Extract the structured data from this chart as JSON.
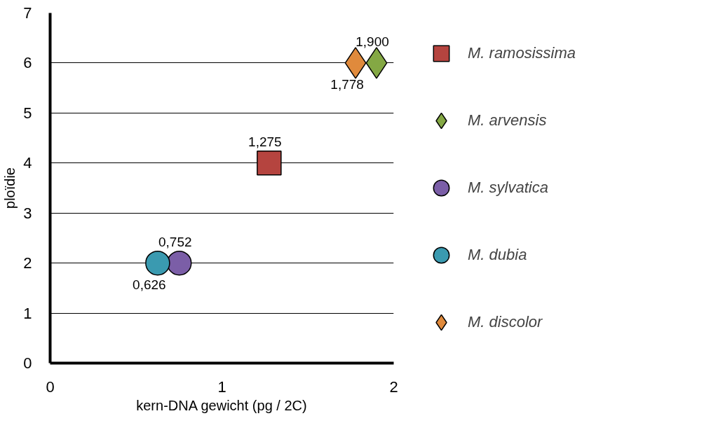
{
  "chart_data": {
    "type": "scatter",
    "xlabel": "kern-DNA gewicht (pg / 2C)",
    "ylabel": "ploïdie",
    "xlim": [
      0,
      2
    ],
    "xticks": [
      0,
      1,
      2
    ],
    "ylim": [
      0,
      7
    ],
    "yticks": [
      0,
      1,
      2,
      3,
      4,
      5,
      6,
      7
    ],
    "grid": "y",
    "legend": "right",
    "series": [
      {
        "name": "M. ramosissima",
        "color": "#b5443f",
        "marker": "square",
        "x": [
          1.275
        ],
        "values": [
          4
        ]
      },
      {
        "name": "M. arvensis",
        "color": "#84a844",
        "marker": "diamond",
        "x": [
          1.9
        ],
        "values": [
          6
        ]
      },
      {
        "name": "M. sylvatica",
        "color": "#7b5ea7",
        "marker": "circle",
        "x": [
          0.752
        ],
        "values": [
          2
        ]
      },
      {
        "name": "M. dubia",
        "color": "#3a9ab0",
        "marker": "circle",
        "x": [
          0.626
        ],
        "values": [
          2
        ]
      },
      {
        "name": "M. discolor",
        "color": "#e08a3c",
        "marker": "diamond",
        "x": [
          1.778
        ],
        "values": [
          6
        ]
      }
    ],
    "annotations": [
      {
        "text": "1,275",
        "x": 1.275,
        "y": 4
      },
      {
        "text": "1,900",
        "x": 1.9,
        "y": 6
      },
      {
        "text": "0,752",
        "x": 0.752,
        "y": 2
      },
      {
        "text": "0,626",
        "x": 0.626,
        "y": 2
      },
      {
        "text": "1,778",
        "x": 1.778,
        "y": 6
      }
    ]
  }
}
